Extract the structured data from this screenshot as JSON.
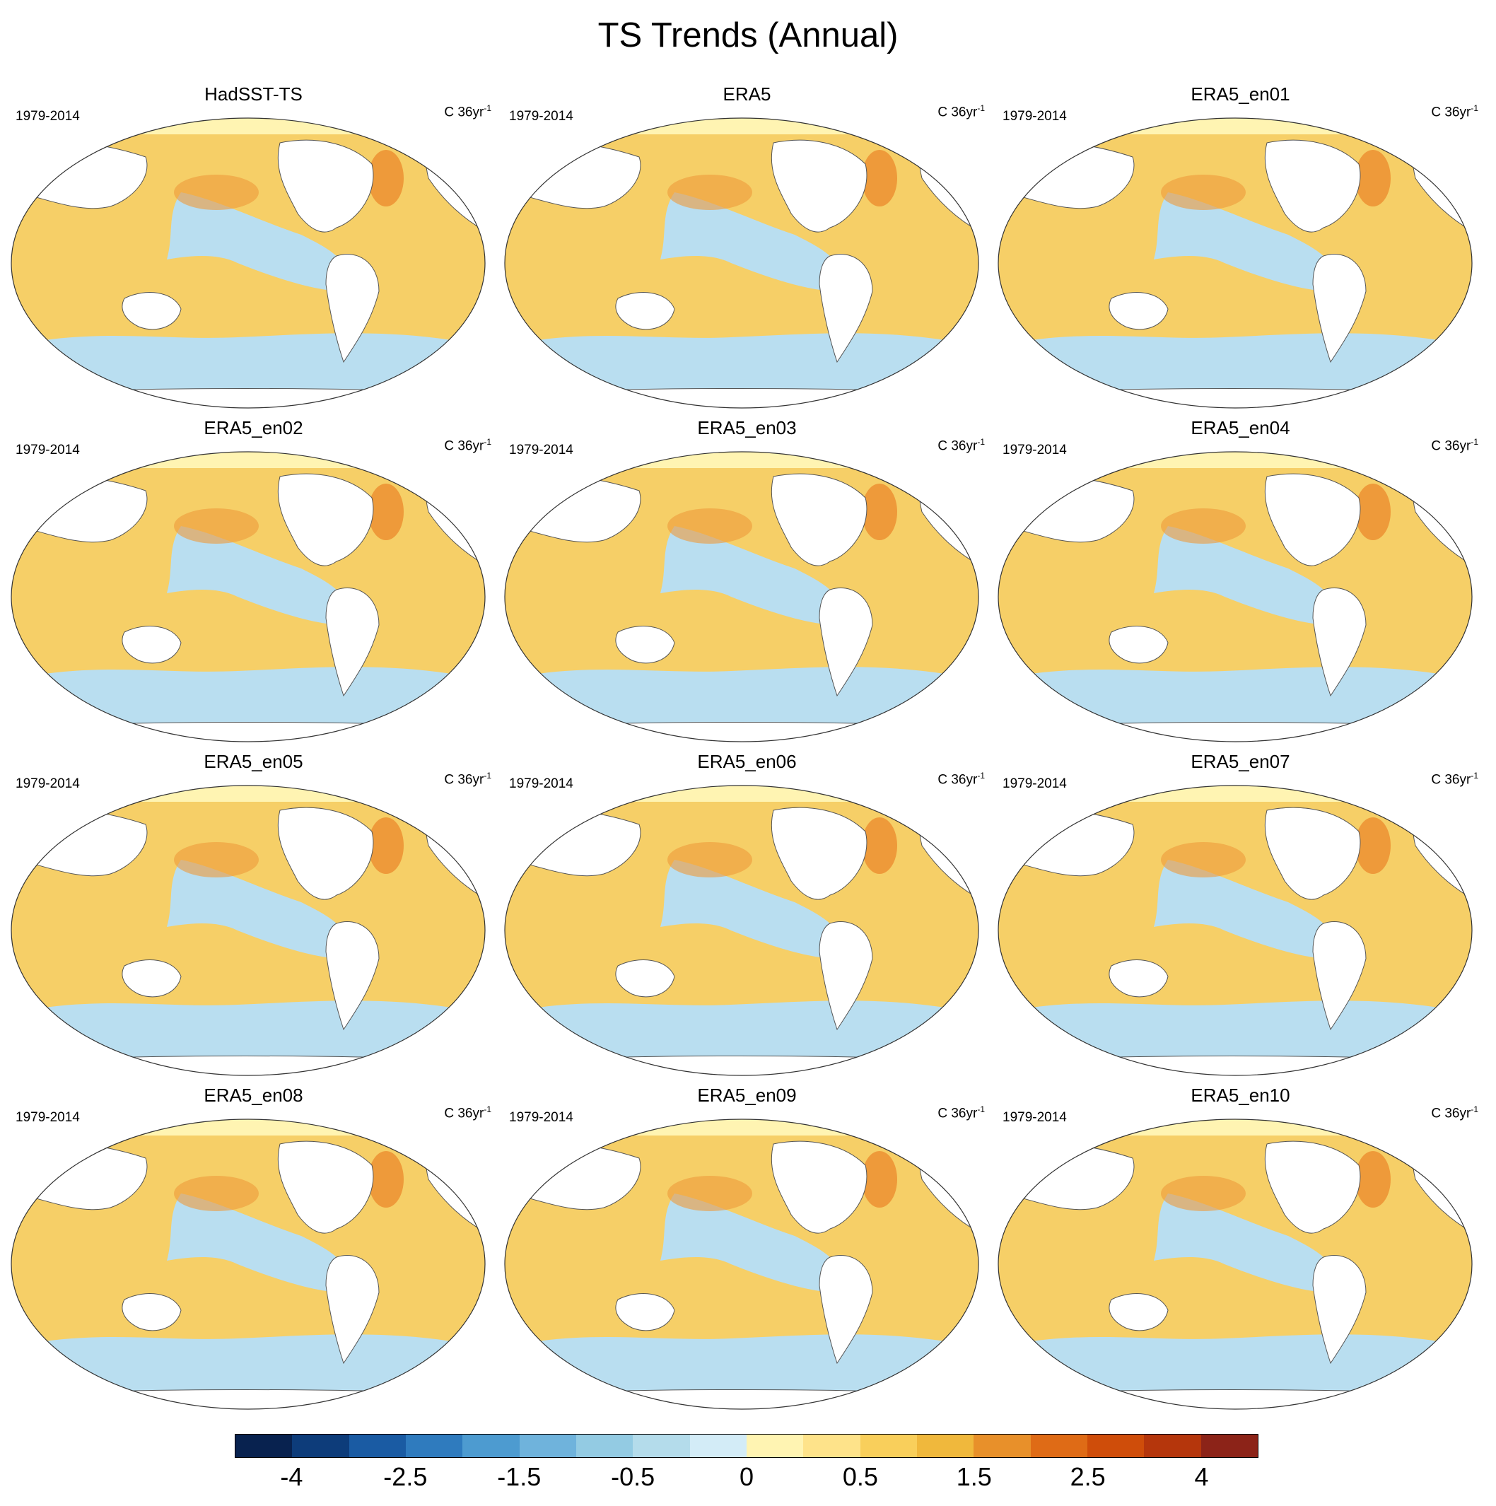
{
  "title": "TS Trends (Annual)",
  "panels": [
    {
      "title": "HadSST-TS",
      "period": "1979-2014",
      "units": "C 36yr",
      "units_exp": "-1"
    },
    {
      "title": "ERA5",
      "period": "1979-2014",
      "units": "C 36yr",
      "units_exp": "-1"
    },
    {
      "title": "ERA5_en01",
      "period": "1979-2014",
      "units": "C 36yr",
      "units_exp": "-1"
    },
    {
      "title": "ERA5_en02",
      "period": "1979-2014",
      "units": "C 36yr",
      "units_exp": "-1"
    },
    {
      "title": "ERA5_en03",
      "period": "1979-2014",
      "units": "C 36yr",
      "units_exp": "-1"
    },
    {
      "title": "ERA5_en04",
      "period": "1979-2014",
      "units": "C 36yr",
      "units_exp": "-1"
    },
    {
      "title": "ERA5_en05",
      "period": "1979-2014",
      "units": "C 36yr",
      "units_exp": "-1"
    },
    {
      "title": "ERA5_en06",
      "period": "1979-2014",
      "units": "C 36yr",
      "units_exp": "-1"
    },
    {
      "title": "ERA5_en07",
      "period": "1979-2014",
      "units": "C 36yr",
      "units_exp": "-1"
    },
    {
      "title": "ERA5_en08",
      "period": "1979-2014",
      "units": "C 36yr",
      "units_exp": "-1"
    },
    {
      "title": "ERA5_en09",
      "period": "1979-2014",
      "units": "C 36yr",
      "units_exp": "-1"
    },
    {
      "title": "ERA5_en10",
      "period": "1979-2014",
      "units": "C 36yr",
      "units_exp": "-1"
    }
  ],
  "colorbar": {
    "colors": [
      "#08224f",
      "#0d3c7a",
      "#1a5ba3",
      "#2f7bbe",
      "#4d9bd0",
      "#6fb3dc",
      "#93cbe3",
      "#b4dceb",
      "#d3ecf7",
      "#fff4b2",
      "#fee38a",
      "#f9cf5b",
      "#f0b83c",
      "#e8902a",
      "#df6b16",
      "#cf4d0a",
      "#b5360c",
      "#8c2318"
    ],
    "labels": [
      "-4",
      "-2.5",
      "-1.5",
      "-0.5",
      "0",
      "0.5",
      "1.5",
      "2.5",
      "4"
    ]
  },
  "colors": {
    "land": "#ffffff",
    "coast": "#555555",
    "cool": "#b9def0",
    "warm": "#f6cf67",
    "hot": "#ee9a3a"
  }
}
